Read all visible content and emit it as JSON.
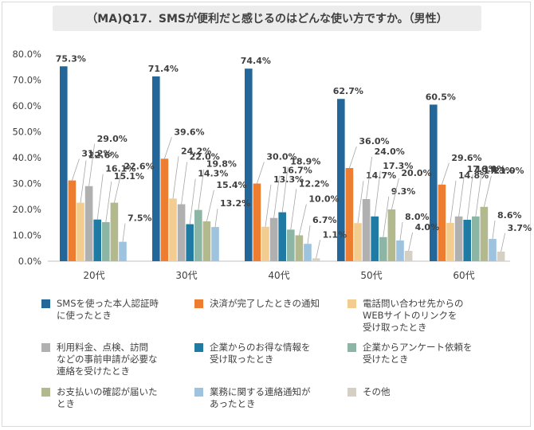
{
  "chart_data": {
    "type": "bar",
    "title": "（MA)Q17．SMSが便利だと感じるのはどんな使い方ですか。（男性）",
    "categories": [
      "20代",
      "30代",
      "40代",
      "50代",
      "60代"
    ],
    "y_ticks": [
      "0.0%",
      "10.0%",
      "20.0%",
      "30.0%",
      "40.0%",
      "50.0%",
      "60.0%",
      "70.0%",
      "80.0%"
    ],
    "ylim": [
      0,
      80
    ],
    "series": [
      {
        "name": "SMSを使った本人認証時\nに使ったとき",
        "color": "#23679a",
        "values": [
          75.3,
          71.4,
          74.4,
          62.7,
          60.5
        ],
        "labels": [
          "75.3%",
          "71.4%",
          "74.4%",
          "62.7%",
          "60.5%"
        ]
      },
      {
        "name": "決済が完了したときの通知",
        "color": "#ed7d31",
        "values": [
          31.2,
          39.6,
          30.0,
          36.0,
          29.6
        ],
        "labels": [
          "31.2%",
          "39.6%",
          "30.0%",
          "36.0%",
          "29.6%"
        ]
      },
      {
        "name": "電話問い合わせ先からの\nWEBサイトのリンクを\n受け取ったとき",
        "color": "#f2cd8f",
        "values": [
          22.6,
          24.2,
          13.3,
          14.7,
          14.8
        ],
        "labels": [
          "22.6%",
          "24.2%",
          "13.3%",
          "14.7%",
          "14.8%"
        ]
      },
      {
        "name": "利用料金、点検、訪問\nなどの事前申請が必要な\n連絡を受けたとき",
        "color": "#b0b0b0",
        "values": [
          29.0,
          22.0,
          16.7,
          24.0,
          17.3
        ],
        "labels": [
          "29.0%",
          "22.0%",
          "16.7%",
          "24.0%",
          "17.3%"
        ]
      },
      {
        "name": "企業からのお得な情報を\n受け取ったとき",
        "color": "#1f7aa4",
        "values": [
          16.1,
          14.3,
          18.9,
          17.3,
          16.0
        ],
        "labels": [
          "16.1%",
          "14.3%",
          "18.9%",
          "17.3%",
          "16.0%"
        ]
      },
      {
        "name": "企業からアンケート依頼を\n受けたとき",
        "color": "#8db5a5",
        "values": [
          15.1,
          19.8,
          12.2,
          9.3,
          17.3
        ],
        "labels": [
          "15.1%",
          "19.8%",
          "12.2%",
          "9.3%",
          "17.3%"
        ]
      },
      {
        "name": "お支払いの確認が届いた\nとき",
        "color": "#b1b98d",
        "values": [
          22.6,
          15.4,
          10.0,
          20.0,
          21.0
        ],
        "labels": [
          "22.6%",
          "15.4%",
          "10.0%",
          "20.0%",
          "21.0%"
        ]
      },
      {
        "name": "業務に関する連絡通知が\nあったとき",
        "color": "#9dc3df",
        "values": [
          7.5,
          13.2,
          6.7,
          8.0,
          8.6
        ],
        "labels": [
          "7.5%",
          "13.2%",
          "6.7%",
          "8.0%",
          "8.6%"
        ]
      },
      {
        "name": "その他",
        "color": "#d6d0c4",
        "values": [
          0.0,
          0.0,
          1.1,
          4.0,
          3.7
        ],
        "labels": [
          "",
          "",
          "1.1%",
          "4.0%",
          "3.7%"
        ]
      }
    ]
  }
}
